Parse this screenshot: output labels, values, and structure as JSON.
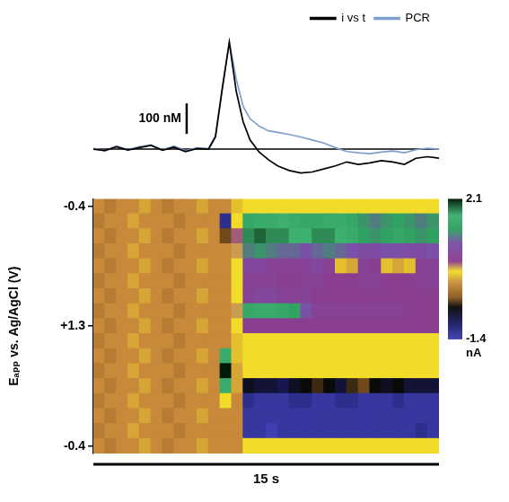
{
  "chart_data": [
    {
      "type": "line",
      "x": [
        0,
        0.5,
        1,
        1.5,
        2,
        2.5,
        3,
        3.5,
        4,
        4.5,
        5,
        5.3,
        5.6,
        5.9,
        6.2,
        6.5,
        6.8,
        7.2,
        7.6,
        8,
        8.5,
        9,
        9.5,
        10,
        10.5,
        11,
        11.5,
        12,
        12.5,
        13,
        13.5,
        14,
        14.5,
        15
      ],
      "series": [
        {
          "name": "i vs t",
          "color": "#000000",
          "values": [
            0,
            -5,
            8,
            -3,
            5,
            12,
            -4,
            6,
            -8,
            2,
            0,
            40,
            200,
            350,
            190,
            90,
            30,
            -10,
            -35,
            -55,
            -70,
            -78,
            -75,
            -65,
            -55,
            -42,
            -50,
            -45,
            -38,
            -42,
            -50,
            -30,
            -25,
            -30
          ]
        },
        {
          "name": "PCR",
          "color": "#7f9fd0",
          "values": [
            3,
            -6,
            10,
            -2,
            8,
            14,
            -2,
            10,
            -5,
            4,
            2,
            45,
            205,
            352,
            230,
            140,
            100,
            75,
            60,
            55,
            48,
            40,
            30,
            20,
            5,
            -8,
            -12,
            -15,
            -10,
            -6,
            -12,
            -2,
            3,
            0
          ]
        }
      ],
      "xlim": [
        0,
        15
      ],
      "ylim": [
        -100,
        380
      ],
      "tick_labels": false,
      "legend": "upper right",
      "baseline": 0,
      "scale_bar": {
        "value": 100,
        "label": "100 nM"
      }
    },
    {
      "type": "heatmap",
      "x": [
        0.25,
        0.75,
        1.25,
        1.75,
        2.25,
        2.75,
        3.25,
        3.75,
        4.25,
        4.75,
        5.25,
        5.75,
        6.25,
        6.75,
        7.25,
        7.75,
        8.25,
        8.75,
        9.25,
        9.75,
        10.25,
        10.75,
        11.25,
        11.75,
        12.25,
        12.75,
        13.25,
        13.75,
        14.25,
        14.75
      ],
      "xlim": [
        0,
        15
      ],
      "y_categories": [
        "-0.4",
        null,
        null,
        null,
        null,
        null,
        null,
        null,
        "+1.3",
        null,
        null,
        null,
        null,
        null,
        null,
        null,
        "-0.4"
      ],
      "y_label": "Eₐₚₚ vs. Ag/AgCl (V)",
      "tick_labels": "y",
      "cells": [
        [
          0,
          -0.1,
          0,
          0,
          0.1,
          0,
          -0.1,
          0,
          0,
          0.1,
          0,
          0,
          0.2,
          0.3,
          0.3,
          0.3,
          0.3,
          0.3,
          0.3,
          0.3,
          0.3,
          0.3,
          0.3,
          0.3,
          0.3,
          0.3,
          0.3,
          0.3,
          0.3,
          0.3
        ],
        [
          -0.1,
          0,
          0,
          0.1,
          0,
          0,
          0,
          -0.1,
          0,
          0,
          0,
          -1.2,
          0.3,
          1.5,
          1.6,
          1.6,
          1.7,
          1.6,
          1.5,
          1.5,
          1.6,
          1.6,
          1.5,
          1.3,
          1.2,
          1.3,
          1.4,
          1.3,
          1.2,
          1.3
        ],
        [
          0,
          -0.1,
          0,
          0,
          0.1,
          0,
          -0.1,
          0,
          0,
          0.1,
          0,
          -0.4,
          0.5,
          1.8,
          1.9,
          1.8,
          1.8,
          1.7,
          1.7,
          1.8,
          1.8,
          1.7,
          1.6,
          1.4,
          1.3,
          1.4,
          1.5,
          1.4,
          1.3,
          1.4
        ],
        [
          -0.1,
          0,
          0,
          0.1,
          0,
          0,
          0,
          -0.1,
          0,
          0,
          0,
          0,
          0.4,
          1.2,
          1.3,
          1.2,
          1.1,
          1.1,
          1.0,
          1.1,
          1.2,
          1.1,
          1.0,
          0.9,
          0.9,
          1.0,
          1.0,
          0.9,
          0.9,
          1.0
        ],
        [
          0,
          -0.1,
          0,
          0,
          0.1,
          0,
          -0.1,
          0,
          0,
          0.1,
          0,
          0,
          0.3,
          0.8,
          0.8,
          0.7,
          0.7,
          0.7,
          0.7,
          0.8,
          0.7,
          0.2,
          0.1,
          0.7,
          0.6,
          0.2,
          0.1,
          0.2,
          0.7,
          0.7
        ],
        [
          -0.1,
          0,
          0,
          0.1,
          0,
          0,
          0,
          -0.1,
          0,
          0,
          0,
          0,
          0.3,
          0.7,
          0.7,
          0.7,
          0.6,
          0.6,
          0.7,
          0.7,
          0.6,
          0.6,
          0.6,
          0.7,
          0.7,
          0.6,
          0.6,
          0.6,
          0.7,
          0.7
        ],
        [
          0,
          -0.1,
          0,
          0,
          0.1,
          0,
          -0.1,
          0,
          0,
          0.1,
          0,
          0,
          0.3,
          0.7,
          0.8,
          0.8,
          0.7,
          0.7,
          0.7,
          0.6,
          0.6,
          0.6,
          0.6,
          0.6,
          0.6,
          0.6,
          0.6,
          0.6,
          0.6,
          0.6
        ],
        [
          -0.1,
          0,
          0,
          0.1,
          0,
          0,
          0,
          -0.1,
          0,
          0,
          0,
          0,
          0.4,
          1.5,
          1.6,
          1.6,
          1.5,
          1.4,
          1.0,
          0.7,
          0.7,
          0.7,
          0.7,
          0.7,
          0.7,
          0.7,
          0.7,
          0.6,
          0.6,
          0.6
        ],
        [
          0,
          -0.1,
          0,
          0,
          0.1,
          0,
          -0.1,
          0,
          0,
          0.1,
          0,
          0,
          0.3,
          0.6,
          0.6,
          0.6,
          0.6,
          0.6,
          0.6,
          0.6,
          0.6,
          0.6,
          0.6,
          0.6,
          0.6,
          0.6,
          0.6,
          0.6,
          0.6,
          0.6
        ],
        [
          -0.1,
          0,
          0,
          0.1,
          0,
          0,
          0,
          -0.1,
          0,
          0,
          0,
          0,
          0.2,
          0.3,
          0.3,
          0.3,
          0.3,
          0.3,
          0.3,
          0.3,
          0.3,
          0.3,
          0.3,
          0.3,
          0.3,
          0.3,
          0.3,
          0.3,
          0.3,
          0.3
        ],
        [
          0,
          -0.1,
          0,
          0,
          0.1,
          0,
          -0.1,
          0,
          0,
          0.1,
          0,
          1.6,
          0.2,
          0.3,
          0.3,
          0.3,
          0.3,
          0.3,
          0.3,
          0.3,
          0.3,
          0.3,
          0.3,
          0.3,
          0.3,
          0.3,
          0.3,
          0.3,
          0.3,
          0.3
        ],
        [
          -0.1,
          0,
          0,
          0.1,
          0,
          0,
          0,
          -0.1,
          0,
          0,
          0,
          2.1,
          0.1,
          0.3,
          0.3,
          0.3,
          0.3,
          0.3,
          0.3,
          0.3,
          0.3,
          0.3,
          0.3,
          0.3,
          0.3,
          0.3,
          0.3,
          0.3,
          0.3,
          0.3
        ],
        [
          0,
          -0.1,
          0,
          0,
          0.1,
          0,
          -0.1,
          0,
          0,
          0.1,
          0,
          1.6,
          0.1,
          -0.7,
          -0.8,
          -0.8,
          -0.9,
          -0.7,
          -0.6,
          -0.5,
          -0.6,
          -0.8,
          -0.5,
          -0.4,
          -0.6,
          -0.7,
          -0.6,
          -0.8,
          -0.8,
          -0.8
        ],
        [
          -0.1,
          0,
          0,
          0.1,
          0,
          0,
          0,
          -0.1,
          0,
          0,
          0,
          0.3,
          0,
          -1.2,
          -1.3,
          -1.3,
          -1.3,
          -1.2,
          -1.2,
          -1.3,
          -1.3,
          -1.2,
          -1.2,
          -1.3,
          -1.3,
          -1.3,
          -1.2,
          -1.3,
          -1.3,
          -1.3
        ],
        [
          0,
          -0.1,
          0,
          0,
          0.1,
          0,
          -0.1,
          0,
          0,
          0.1,
          0,
          0,
          0,
          -1.3,
          -1.3,
          -1.3,
          -1.3,
          -1.3,
          -1.3,
          -1.3,
          -1.3,
          -1.3,
          -1.3,
          -1.3,
          -1.3,
          -1.3,
          -1.3,
          -1.3,
          -1.3,
          -1.3
        ],
        [
          -0.1,
          0,
          0,
          0.1,
          0,
          0,
          0,
          -0.1,
          0,
          0,
          0,
          0,
          0,
          -1.3,
          -1.3,
          -1.4,
          -1.3,
          -1.3,
          -1.3,
          -1.3,
          -1.3,
          -1.3,
          -1.3,
          -1.3,
          -1.3,
          -1.3,
          -1.3,
          -1.3,
          -1.2,
          -1.3
        ],
        [
          0,
          -0.1,
          0,
          0,
          0.1,
          0,
          -0.1,
          0,
          0,
          0.1,
          0,
          0,
          0,
          0.3,
          0.3,
          0.3,
          0.3,
          0.3,
          0.3,
          0.3,
          0.3,
          0.3,
          0.3,
          0.3,
          0.3,
          0.3,
          0.3,
          0.3,
          0.3,
          0.3
        ]
      ],
      "colorbar": {
        "range": [
          -1.4,
          2.1
        ],
        "ticks": [
          2.1,
          -1.4
        ],
        "label": "nA"
      },
      "scale_bar": {
        "value": 15,
        "label": "15 s"
      }
    }
  ]
}
